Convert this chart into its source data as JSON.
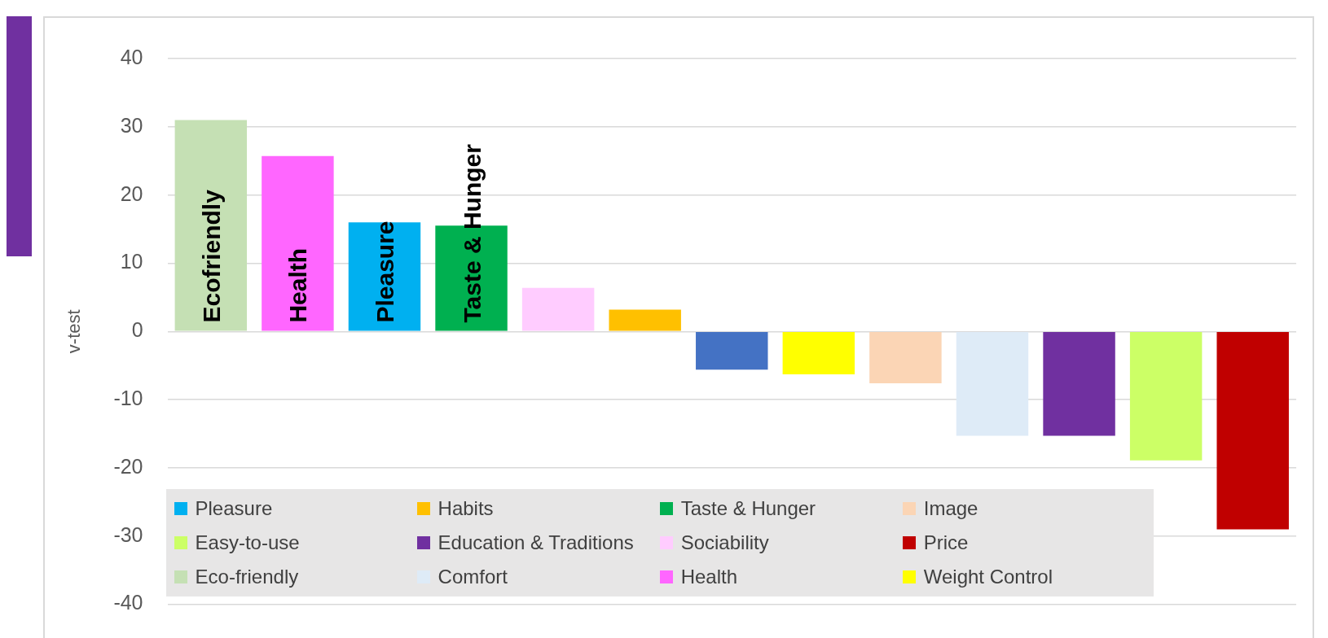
{
  "chart_data": {
    "type": "bar",
    "ylabel": "v-test",
    "categories": [
      null,
      null,
      null,
      null,
      null,
      null,
      null,
      null,
      null,
      null,
      null,
      null,
      null
    ],
    "stacked": true,
    "ylim": [
      -40,
      40
    ],
    "yticks": [
      -40,
      -30,
      -20,
      -10,
      0,
      10,
      20,
      30,
      40
    ],
    "grid": "y",
    "legend": "bottom",
    "annotations": [
      "Ecofriendly",
      "Health",
      "Pleasure",
      "Taste & Hunger"
    ],
    "series": [
      {
        "name": "Pleasure",
        "color": "#00b0f0",
        "values": [
          null,
          null,
          16.0,
          null,
          null,
          null,
          null,
          null,
          null,
          null,
          null,
          null,
          null
        ]
      },
      {
        "name": "Habits",
        "color": "#ffc000",
        "values": [
          null,
          null,
          null,
          null,
          null,
          3.2,
          null,
          null,
          null,
          null,
          null,
          null,
          null
        ]
      },
      {
        "name": "Taste & Hunger",
        "color": "#00b050",
        "values": [
          null,
          null,
          null,
          15.5,
          null,
          null,
          null,
          null,
          null,
          null,
          null,
          null,
          null
        ]
      },
      {
        "name": "Image",
        "color": "#fbd5b5",
        "values": [
          null,
          null,
          null,
          null,
          null,
          null,
          null,
          null,
          -7.6,
          null,
          null,
          null,
          null
        ]
      },
      {
        "name": "Easy-to-use",
        "color": "#ccff66",
        "values": [
          null,
          null,
          null,
          null,
          null,
          null,
          null,
          null,
          null,
          null,
          null,
          -18.9,
          null
        ]
      },
      {
        "name": "Education & Traditions",
        "color": "#7030a0",
        "values": [
          null,
          null,
          null,
          null,
          null,
          null,
          null,
          null,
          null,
          null,
          -15.3,
          null,
          null
        ]
      },
      {
        "name": "Sociability",
        "color": "#ffccff",
        "values": [
          null,
          null,
          null,
          null,
          6.4,
          null,
          null,
          null,
          null,
          null,
          null,
          null,
          null
        ]
      },
      {
        "name": "Price",
        "color": "#c00000",
        "values": [
          null,
          null,
          null,
          null,
          null,
          null,
          null,
          null,
          null,
          null,
          null,
          null,
          -29.0
        ]
      },
      {
        "name": "Eco-friendly",
        "color": "#c5e0b4",
        "values": [
          31.0,
          null,
          null,
          null,
          null,
          null,
          null,
          null,
          null,
          null,
          null,
          null,
          null
        ]
      },
      {
        "name": "Comfort",
        "color": "#deebf7",
        "values": [
          null,
          null,
          null,
          null,
          null,
          null,
          null,
          null,
          null,
          -15.3,
          null,
          null,
          null
        ]
      },
      {
        "name": "Health",
        "color": "#ff66ff",
        "values": [
          null,
          25.7,
          null,
          null,
          null,
          null,
          null,
          null,
          null,
          null,
          null,
          null,
          null
        ]
      },
      {
        "name": "Weight Control",
        "color": "#ffff00",
        "values": [
          null,
          null,
          null,
          null,
          null,
          null,
          null,
          -6.3,
          null,
          null,
          null,
          null,
          null
        ]
      },
      {
        "color": "#4472c4",
        "values": [
          null,
          null,
          null,
          null,
          null,
          null,
          -5.6,
          null,
          null,
          null,
          null,
          null,
          null
        ]
      }
    ]
  }
}
